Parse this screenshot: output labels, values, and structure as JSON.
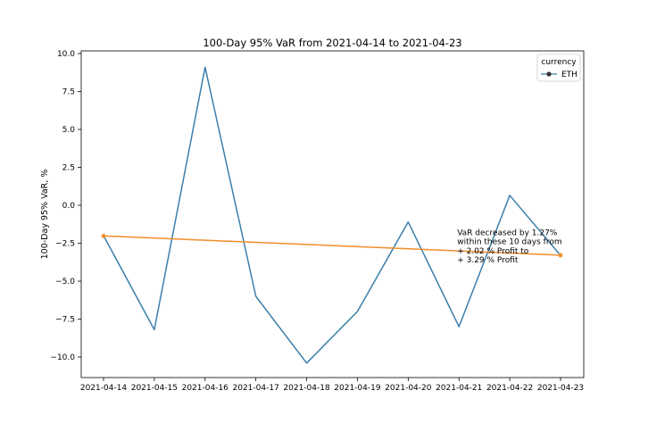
{
  "chart_data": {
    "type": "line",
    "title": "100-Day 95% VaR from 2021-04-14 to 2021-04-23",
    "xlabel": "",
    "ylabel": "100-Day 95% VaR, %",
    "ylim": [
      -11.5,
      10.0
    ],
    "yticks": [
      10.0,
      7.5,
      5.0,
      2.5,
      0.0,
      -2.5,
      -5.0,
      -7.5,
      -10.0
    ],
    "ytick_labels": [
      "10.0",
      "7.5",
      "5.0",
      "2.5",
      "0.0",
      "−2.5",
      "−5.0",
      "−7.5",
      "−10.0"
    ],
    "categories": [
      "2021-04-14",
      "2021-04-15",
      "2021-04-16",
      "2021-04-17",
      "2021-04-18",
      "2021-04-19",
      "2021-04-20",
      "2021-04-21",
      "2021-04-22",
      "2021-04-23"
    ],
    "series": [
      {
        "name": "ETH",
        "color": "#3b7fab",
        "values": [
          -2.0,
          -8.2,
          9.1,
          -6.0,
          -10.4,
          -7.0,
          -1.1,
          -8.0,
          0.65,
          -3.3
        ]
      }
    ],
    "trend": {
      "color": "#f28e2b",
      "from": {
        "x": "2021-04-14",
        "y": -2.02
      },
      "to": {
        "x": "2021-04-23",
        "y": -3.29
      }
    },
    "legend": {
      "title": "currency",
      "placement": "top-right",
      "entries": [
        "ETH"
      ]
    },
    "annotation": {
      "lines": [
        "VaR decreased by 1.27%",
        " within these 10 days from",
        " + 2.02 % Profit to",
        " + 3.29 % Profit"
      ],
      "anchor": {
        "x": "2021-04-21",
        "y": -2.0
      }
    },
    "grid": false
  }
}
